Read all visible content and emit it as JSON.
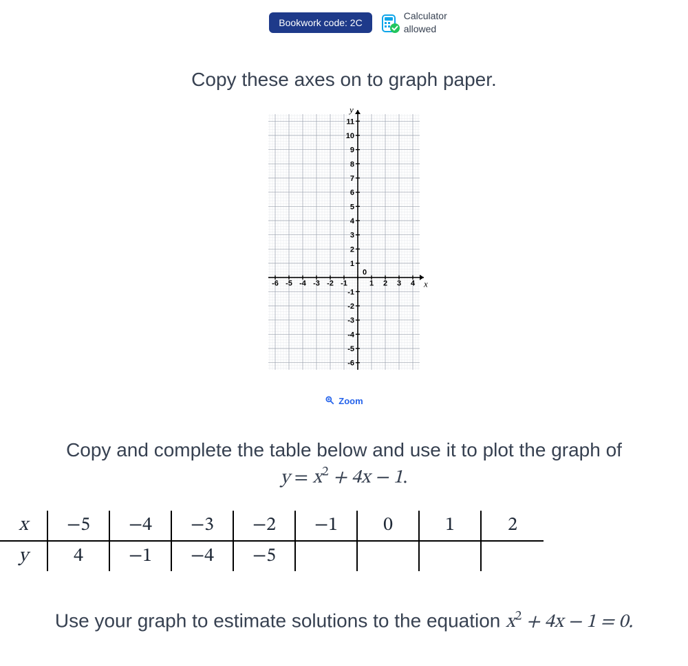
{
  "header": {
    "bookwork_label": "Bookwork code: 2C",
    "calculator_text": "Calculator allowed"
  },
  "instruction1": "Copy these axes on to graph paper.",
  "graph": {
    "x_axis_label": "x",
    "y_axis_label": "y",
    "x_ticks": [
      -6,
      -5,
      -4,
      -3,
      -2,
      -1,
      0,
      1,
      2,
      3,
      4
    ],
    "y_ticks_pos": [
      1,
      2,
      3,
      4,
      5,
      6,
      7,
      8,
      9,
      10,
      11
    ],
    "y_ticks_neg": [
      -1,
      -2,
      -3,
      -4,
      -5,
      -6
    ],
    "xlim": [
      -6.5,
      4.5
    ],
    "ylim": [
      -6.5,
      11.5
    ],
    "grid_major_color": "#9ca3af",
    "grid_minor_color": "#e5e7eb",
    "axis_color": "#000000",
    "tick_font_size": 11,
    "axis_label_font_size": 13,
    "grid_background": "#ffffff"
  },
  "zoom_label": "Zoom",
  "instruction2_pre": "Copy and complete the table below and use it to plot the graph of",
  "equation_main": {
    "lhs": "y",
    "rhs_html": "x<sup>2</sup> + 4x − 1"
  },
  "table": {
    "row_labels": [
      "x",
      "y"
    ],
    "x_values": [
      "−5",
      "−4",
      "−3",
      "−2",
      "−1",
      "0",
      "1",
      "2"
    ],
    "y_values": [
      "4",
      "−1",
      "−4",
      "−5",
      "",
      "",
      "",
      ""
    ],
    "cell_font_size": 28,
    "border_color": "#000000"
  },
  "instruction3_pre": "Use your graph to estimate solutions to the equation ",
  "equation_solve_html": "x<sup>2</sup> + 4x − 1 = 0",
  "colors": {
    "badge_bg": "#1e3a8a",
    "badge_fg": "#ffffff",
    "text": "#374151",
    "link": "#2563eb"
  }
}
